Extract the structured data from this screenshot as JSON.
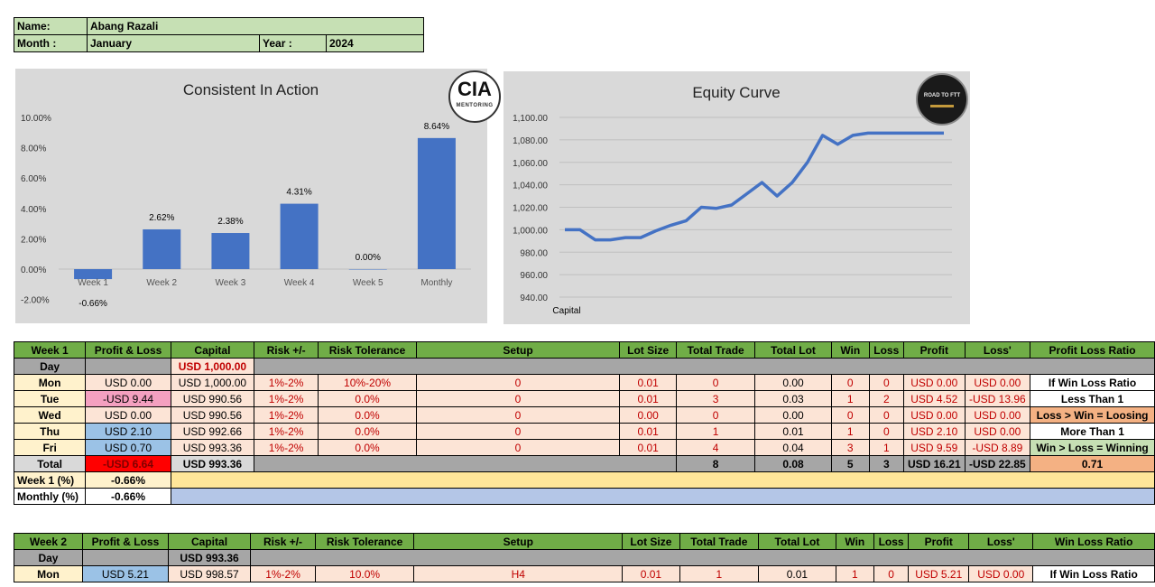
{
  "info": {
    "name_label": "Name:",
    "name_value": "Abang Razali",
    "month_label": "Month :",
    "month_value": "January",
    "year_label": "Year :",
    "year_value": "2024"
  },
  "chart1": {
    "title": "Consistent In Action",
    "logo_text": "CIA",
    "logo_sub": "MENTORING",
    "chart_data": {
      "type": "bar",
      "categories": [
        "Week 1",
        "Week 2",
        "Week 3",
        "Week 4",
        "Week 5",
        "Monthly"
      ],
      "values": [
        -0.66,
        2.62,
        2.38,
        4.31,
        0.0,
        8.64
      ],
      "data_labels": [
        "-0.66%",
        "2.62%",
        "2.38%",
        "4.31%",
        "0.00%",
        "8.64%"
      ],
      "y_ticks": [
        "10.00%",
        "8.00%",
        "6.00%",
        "4.00%",
        "2.00%",
        "0.00%",
        "-2.00%"
      ],
      "ylim": [
        -2,
        10
      ],
      "color": "#4472c4"
    }
  },
  "chart2": {
    "title": "Equity Curve",
    "logo_text": "ROAD TO FTT",
    "chart_data": {
      "type": "line",
      "xlabel": "Capital",
      "values": [
        1000,
        1000,
        991,
        991,
        993,
        993,
        999,
        1004,
        1008,
        1020,
        1019,
        1022,
        1032,
        1042,
        1030,
        1042,
        1060,
        1084,
        1076,
        1084,
        1086,
        1086,
        1086,
        1086,
        1086,
        1086
      ],
      "y_ticks": [
        "1,100.00",
        "1,080.00",
        "1,060.00",
        "1,040.00",
        "1,020.00",
        "1,000.00",
        "980.00",
        "960.00",
        "940.00"
      ],
      "ylim": [
        940,
        1100
      ],
      "color": "#4472c4"
    }
  },
  "week1": {
    "headers": [
      "Week 1",
      "Profit & Loss",
      "Capital",
      "Risk +/-",
      "Risk Tolerance",
      "Setup",
      "Lot Size",
      "Total Trade",
      "Total Lot",
      "Win",
      "Loss",
      "Profit",
      "Loss'",
      "Profit Loss Ratio"
    ],
    "day_label": "Day",
    "start_capital": "USD 1,000.00",
    "rows": [
      {
        "day": "Mon",
        "pnl": "USD 0.00",
        "capital": "USD 1,000.00",
        "risk": "1%-2%",
        "tol": "10%-20%",
        "setup": "0",
        "lot": "0.01",
        "trades": "0",
        "tlot": "0.00",
        "win": "0",
        "loss": "0",
        "profit": "USD 0.00",
        "lossv": "USD 0.00",
        "ratio": "If Win Loss Ratio"
      },
      {
        "day": "Tue",
        "pnl": "-USD 9.44",
        "capital": "USD 990.56",
        "risk": "1%-2%",
        "tol": "0.0%",
        "setup": "0",
        "lot": "0.01",
        "trades": "3",
        "tlot": "0.03",
        "win": "1",
        "loss": "2",
        "profit": "USD 4.52",
        "lossv": "-USD 13.96",
        "ratio": "Less Than 1"
      },
      {
        "day": "Wed",
        "pnl": "USD 0.00",
        "capital": "USD 990.56",
        "risk": "1%-2%",
        "tol": "0.0%",
        "setup": "0",
        "lot": "0.00",
        "trades": "0",
        "tlot": "0.00",
        "win": "0",
        "loss": "0",
        "profit": "USD 0.00",
        "lossv": "USD 0.00",
        "ratio": "Loss > Win = Loosing"
      },
      {
        "day": "Thu",
        "pnl": "USD 2.10",
        "capital": "USD 992.66",
        "risk": "1%-2%",
        "tol": "0.0%",
        "setup": "0",
        "lot": "0.01",
        "trades": "1",
        "tlot": "0.01",
        "win": "1",
        "loss": "0",
        "profit": "USD 2.10",
        "lossv": "USD 0.00",
        "ratio": "More Than 1"
      },
      {
        "day": "Fri",
        "pnl": "USD 0.70",
        "capital": "USD 993.36",
        "risk": "1%-2%",
        "tol": "0.0%",
        "setup": "0",
        "lot": "0.01",
        "trades": "4",
        "tlot": "0.04",
        "win": "3",
        "loss": "1",
        "profit": "USD 9.59",
        "lossv": "-USD 8.89",
        "ratio": "Win > Loss = Winning"
      }
    ],
    "total": {
      "label": "Total",
      "pnl": "-USD 6.64",
      "capital": "USD 993.36",
      "trades": "8",
      "tlot": "0.08",
      "win": "5",
      "loss": "3",
      "profit": "USD 16.21",
      "lossv": "-USD 22.85",
      "ratio": "0.71"
    },
    "week_pct_label": "Week 1 (%)",
    "week_pct": "-0.66%",
    "month_pct_label": "Monthly (%)",
    "month_pct": "-0.66%"
  },
  "week2": {
    "headers": [
      "Week 2",
      "Profit & Loss",
      "Capital",
      "Risk +/-",
      "Risk Tolerance",
      "Setup",
      "Lot Size",
      "Total Trade",
      "Total Lot",
      "Win",
      "Loss",
      "Profit",
      "Loss'",
      "Win Loss Ratio"
    ],
    "day_label": "Day",
    "start_capital": "USD 993.36",
    "rows": [
      {
        "day": "Mon",
        "pnl": "USD 5.21",
        "capital": "USD 998.57",
        "risk": "1%-2%",
        "tol": "10.0%",
        "setup": "H4",
        "lot": "0.01",
        "trades": "1",
        "tlot": "0.01",
        "win": "1",
        "loss": "0",
        "profit": "USD 5.21",
        "lossv": "USD 0.00",
        "ratio": "If Win Loss Ratio"
      }
    ]
  }
}
